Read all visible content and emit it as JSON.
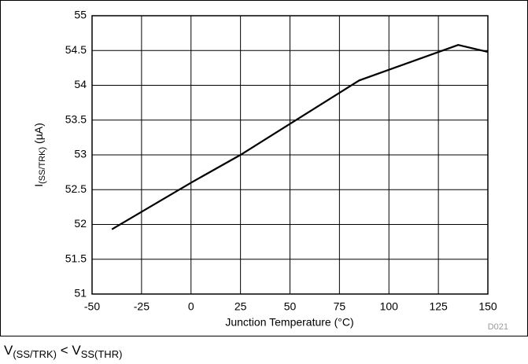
{
  "chart_data": {
    "type": "line",
    "x": [
      -40,
      0,
      25,
      85,
      135,
      150
    ],
    "values": [
      51.93,
      52.6,
      53.0,
      54.07,
      54.58,
      54.48
    ],
    "color": "#000000",
    "xlim": [
      -50,
      150
    ],
    "xticks": [
      -50,
      -25,
      0,
      25,
      50,
      75,
      100,
      125,
      150
    ],
    "ylim": [
      51,
      55
    ],
    "yticks": [
      51,
      51.5,
      52,
      52.5,
      53,
      53.5,
      54,
      54.5,
      55
    ],
    "grid": true,
    "x_label": "Junction Temperature (°C)",
    "y_label": [
      "I",
      "(SS/TRK)",
      " (µA)"
    ],
    "code": "D021",
    "footnote": [
      "V",
      "(SS/TRK)",
      " < V",
      "SS(THR)"
    ]
  }
}
